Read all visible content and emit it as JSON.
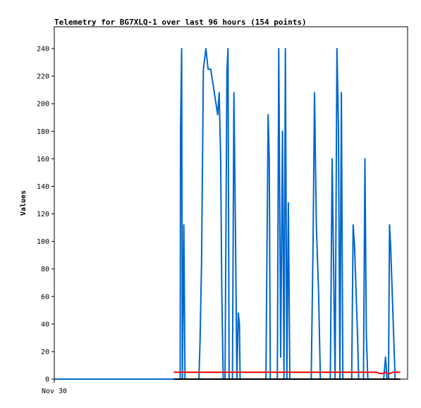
{
  "chart_data": {
    "type": "line",
    "title": "Telemetry for BG7XLQ-1 over last 96 hours (154 points)",
    "ylabel": "Values",
    "xlabel": "",
    "x_tick_labels": [
      "Nov 30"
    ],
    "y_ticks": [
      0,
      20,
      40,
      60,
      80,
      100,
      120,
      140,
      160,
      180,
      200,
      220,
      240
    ],
    "ylim": [
      0,
      256
    ],
    "grid": false,
    "legend": "none",
    "x_unit": "hours within 96-hour window",
    "series": [
      {
        "color": "#0066cc",
        "x": [
          0,
          34.2,
          34.3,
          34.6,
          34.8,
          35.2,
          35.5,
          35.8,
          39.3,
          39.6,
          40.0,
          40.5,
          41.2,
          41.8,
          42.5,
          44.4,
          44.8,
          45.2,
          45.5,
          45.9,
          46.4,
          46.9,
          47.2,
          47.5,
          47.8,
          48.4,
          48.8,
          49.2,
          49.6,
          50.0,
          50.3,
          50.5,
          50.6,
          50.9,
          51.3,
          57.5,
          58.1,
          58.4,
          58.7,
          59.2,
          59.5,
          59.8,
          60.2,
          60.6,
          61.0,
          61.5,
          62.0,
          62.4,
          62.8,
          63.2,
          63.6,
          64.0,
          64.4,
          69.8,
          70.3,
          70.7,
          71.2,
          71.8,
          72.3,
          72.8,
          73.3,
          73.9,
          74.5,
          75.0,
          75.5,
          76.3,
          76.8,
          77.2,
          77.6,
          78.0,
          78.4,
          78.8,
          79.2,
          79.6,
          80.0,
          80.4,
          80.8,
          81.2,
          81.6,
          82.0,
          82.4,
          82.7,
          83.0,
          83.3,
          83.6,
          84.0,
          84.4,
          84.8,
          85.2,
          86.5,
          87.0,
          87.5,
          88.0,
          88.5,
          89.5,
          90.0,
          90.4,
          90.8,
          91.1,
          91.4,
          91.8,
          92.2,
          92.6,
          92.9,
          93.3,
          93.7,
          94.0
        ],
        "values": [
          0,
          0,
          180,
          240,
          0,
          112,
          0,
          0,
          0,
          28,
          84,
          225,
          240,
          225,
          225,
          192,
          208,
          160,
          64,
          0,
          0,
          224,
          240,
          0,
          0,
          0,
          208,
          112,
          0,
          48,
          40,
          0,
          0,
          0,
          0,
          0,
          192,
          160,
          0,
          0,
          0,
          0,
          0,
          0,
          240,
          16,
          180,
          0,
          240,
          0,
          128,
          0,
          0,
          0,
          96,
          208,
          112,
          64,
          0,
          0,
          0,
          0,
          0,
          0,
          160,
          0,
          240,
          184,
          0,
          208,
          0,
          0,
          0,
          0,
          0,
          0,
          0,
          112,
          96,
          64,
          32,
          0,
          0,
          0,
          0,
          0,
          160,
          32,
          0,
          0,
          0,
          0,
          0,
          0,
          0,
          16,
          0,
          0,
          112,
          96,
          64,
          32,
          0,
          0,
          0,
          0,
          0
        ]
      },
      {
        "color": "#ff0000",
        "x": [
          32.5,
          87.5,
          88.5,
          89.2,
          89.8,
          90.6,
          91.1,
          92.0,
          94.0
        ],
        "values": [
          5,
          5,
          4,
          4,
          5,
          4,
          4,
          5,
          5
        ]
      },
      {
        "color": "#000000",
        "x": [
          32.5,
          94.0
        ],
        "values": [
          0,
          0
        ]
      }
    ]
  }
}
